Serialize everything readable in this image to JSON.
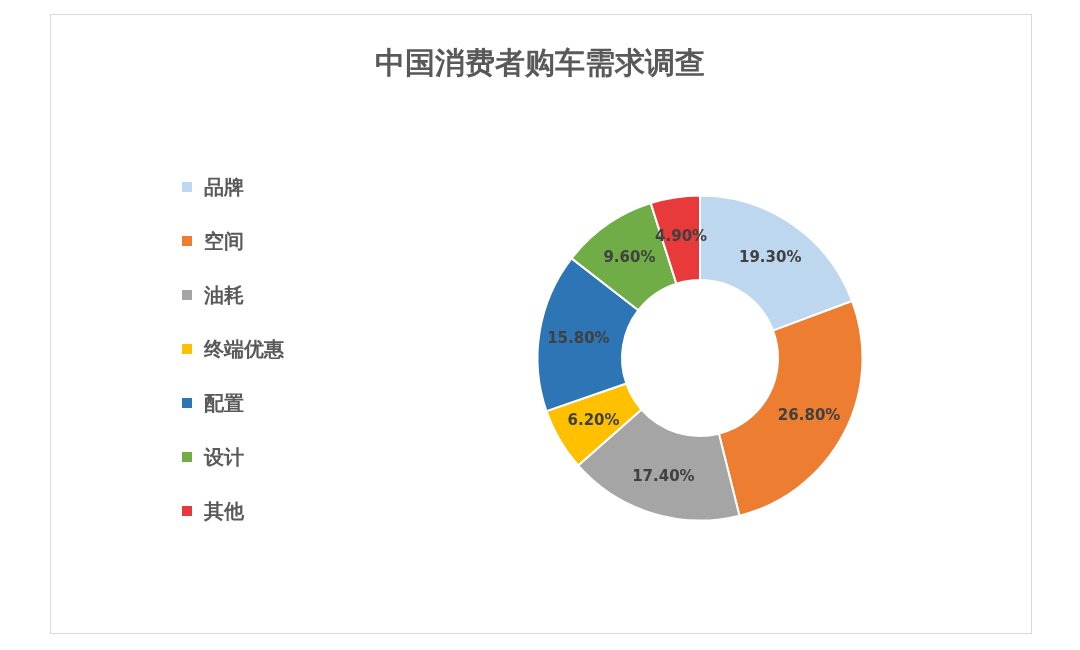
{
  "chart_data": {
    "type": "donut",
    "title": "中国消费者购车需求调查",
    "categories": [
      "品牌",
      "空间",
      "油耗",
      "终端优惠",
      "配置",
      "设计",
      "其他"
    ],
    "values": [
      19.3,
      26.8,
      17.4,
      6.2,
      15.8,
      9.6,
      4.9
    ],
    "value_labels": [
      "19.30%",
      "26.80%",
      "17.40%",
      "6.20%",
      "15.80%",
      "9.60%",
      "4.90%"
    ],
    "colors": [
      "#bdd7ee",
      "#ed7d31",
      "#a5a5a5",
      "#ffc000",
      "#2e75b6",
      "#70ad47",
      "#e83a3a"
    ],
    "legend": "left"
  }
}
